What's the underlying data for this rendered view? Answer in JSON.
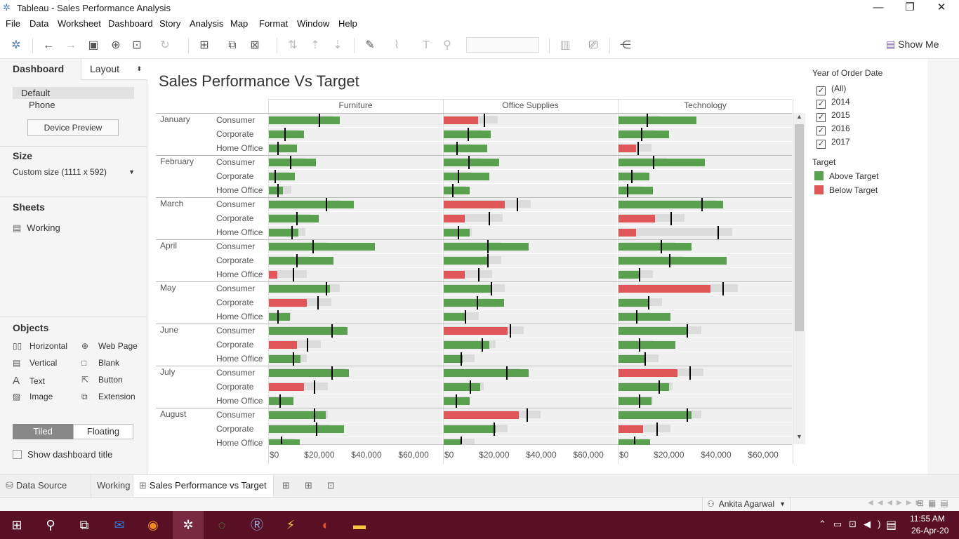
{
  "window": {
    "title": "Tableau - Sales Performance Analysis",
    "minimize": "—",
    "restore": "❐",
    "close": "✕"
  },
  "menu": [
    "File",
    "Data",
    "Worksheet",
    "Dashboard",
    "Story",
    "Analysis",
    "Map",
    "Format",
    "Window",
    "Help"
  ],
  "toolbar": {
    "show_me": "Show Me"
  },
  "left": {
    "tabs": [
      "Dashboard",
      "Layout"
    ],
    "devices": [
      "Default",
      "Phone"
    ],
    "device_preview": "Device Preview",
    "size_title": "Size",
    "size_value": "Custom size (1111 x 592)",
    "sheets_title": "Sheets",
    "sheets": [
      "Working"
    ],
    "objects_title": "Objects",
    "objects": [
      {
        "label": "Horizontal",
        "icon": "horizontal-icon"
      },
      {
        "label": "Web Page",
        "icon": "globe-icon"
      },
      {
        "label": "Vertical",
        "icon": "vertical-icon"
      },
      {
        "label": "Blank",
        "icon": "blank-icon"
      },
      {
        "label": "Text",
        "icon": "text-icon"
      },
      {
        "label": "Button",
        "icon": "button-icon"
      },
      {
        "label": "Image",
        "icon": "image-icon"
      },
      {
        "label": "Extension",
        "icon": "extension-icon"
      }
    ],
    "tiled": "Tiled",
    "floating": "Floating",
    "show_title": "Show dashboard title"
  },
  "dashboard": {
    "title": "Sales Performance Vs Target"
  },
  "legend": {
    "filter_title": "Year of Order Date",
    "years": [
      "(All)",
      "2014",
      "2015",
      "2016",
      "2017"
    ],
    "target_title": "Target",
    "items": [
      {
        "label": "Above Target",
        "color": "#59a14f"
      },
      {
        "label": "Below Target",
        "color": "#e15759"
      }
    ]
  },
  "chart_data": {
    "type": "bar",
    "subtype": "bullet",
    "columns": [
      "Furniture",
      "Office Supplies",
      "Technology"
    ],
    "months": [
      "January",
      "February",
      "March",
      "April",
      "May",
      "June",
      "July",
      "August"
    ],
    "segments": [
      "Consumer",
      "Corporate",
      "Home Office"
    ],
    "x_ticks": [
      "$0",
      "$20,000",
      "$40,000",
      "$60,000"
    ],
    "xlim": [
      0,
      70000
    ],
    "colors": {
      "above": "#59a14f",
      "below": "#e15759"
    },
    "rows": [
      {
        "month": "January",
        "segment": "Consumer",
        "sales": [
          30000,
          14500,
          33000
        ],
        "target": [
          21000,
          17000,
          12000
        ]
      },
      {
        "month": "January",
        "segment": "Corporate",
        "sales": [
          15000,
          20000,
          21500
        ],
        "target": [
          6500,
          10000,
          9500
        ]
      },
      {
        "month": "January",
        "segment": "Home Office",
        "sales": [
          12000,
          18500,
          7500
        ],
        "target": [
          3500,
          5500,
          8000
        ]
      },
      {
        "month": "February",
        "segment": "Consumer",
        "sales": [
          20000,
          23500,
          36500
        ],
        "target": [
          9000,
          10500,
          14500
        ]
      },
      {
        "month": "February",
        "segment": "Corporate",
        "sales": [
          11000,
          19500,
          13000
        ],
        "target": [
          2500,
          6000,
          5500
        ]
      },
      {
        "month": "February",
        "segment": "Home Office",
        "sales": [
          6000,
          11000,
          14500
        ],
        "target": [
          3500,
          3500,
          3500
        ]
      },
      {
        "month": "March",
        "segment": "Consumer",
        "sales": [
          36000,
          26000,
          44500
        ],
        "target": [
          24000,
          31000,
          35000
        ]
      },
      {
        "month": "March",
        "segment": "Corporate",
        "sales": [
          21000,
          9000,
          15500
        ],
        "target": [
          11500,
          19000,
          22000
        ]
      },
      {
        "month": "March",
        "segment": "Home Office",
        "sales": [
          12500,
          11000,
          7500
        ],
        "target": [
          9500,
          6000,
          42000
        ]
      },
      {
        "month": "April",
        "segment": "Consumer",
        "sales": [
          45000,
          36000,
          31000
        ],
        "target": [
          18500,
          18500,
          18000
        ]
      },
      {
        "month": "April",
        "segment": "Corporate",
        "sales": [
          27500,
          19000,
          46000
        ],
        "target": [
          11500,
          18500,
          21500
        ]
      },
      {
        "month": "April",
        "segment": "Home Office",
        "sales": [
          3500,
          9000,
          9000
        ],
        "target": [
          10000,
          14500,
          8500
        ]
      },
      {
        "month": "May",
        "segment": "Consumer",
        "sales": [
          26000,
          20500,
          39000
        ],
        "target": [
          24000,
          20000,
          44000
        ]
      },
      {
        "month": "May",
        "segment": "Corporate",
        "sales": [
          16000,
          25500,
          13000
        ],
        "target": [
          20500,
          14000,
          12500
        ]
      },
      {
        "month": "May",
        "segment": "Home Office",
        "sales": [
          9000,
          9000,
          22000
        ],
        "target": [
          3500,
          9000,
          7500
        ]
      },
      {
        "month": "June",
        "segment": "Consumer",
        "sales": [
          33500,
          27000,
          29000
        ],
        "target": [
          26500,
          28000,
          29000
        ]
      },
      {
        "month": "June",
        "segment": "Corporate",
        "sales": [
          12000,
          19500,
          24000
        ],
        "target": [
          16000,
          16000,
          8500
        ]
      },
      {
        "month": "June",
        "segment": "Home Office",
        "sales": [
          13500,
          8000,
          11000
        ],
        "target": [
          10000,
          7000,
          11000
        ]
      },
      {
        "month": "July",
        "segment": "Consumer",
        "sales": [
          34000,
          36000,
          25000
        ],
        "target": [
          26500,
          26500,
          30000
        ]
      },
      {
        "month": "July",
        "segment": "Corporate",
        "sales": [
          15000,
          15500,
          21500
        ],
        "target": [
          19000,
          11000,
          17000
        ]
      },
      {
        "month": "July",
        "segment": "Home Office",
        "sales": [
          10500,
          11000,
          14000
        ],
        "target": [
          4500,
          5000,
          8500
        ]
      },
      {
        "month": "August",
        "segment": "Consumer",
        "sales": [
          24000,
          32000,
          31000
        ],
        "target": [
          19000,
          35000,
          29000
        ]
      },
      {
        "month": "August",
        "segment": "Corporate",
        "sales": [
          32000,
          22000,
          10500
        ],
        "target": [
          20000,
          21000,
          16000
        ]
      },
      {
        "month": "August",
        "segment": "Home Office",
        "sales": [
          13000,
          7500,
          13500
        ],
        "target": [
          5000,
          7000,
          6500
        ]
      }
    ]
  },
  "tabs": {
    "data_source": "Data Source",
    "working": "Working",
    "active": "Sales Performance vs Target"
  },
  "status": {
    "user": "Ankita Agarwal"
  },
  "taskbar": {
    "time": "11:55 AM",
    "date": "26-Apr-20"
  }
}
